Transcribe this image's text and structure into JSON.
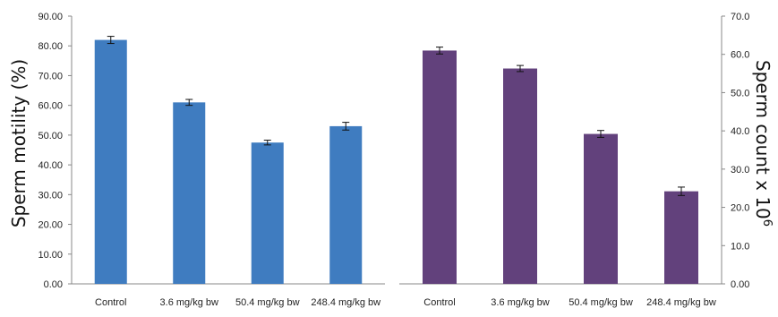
{
  "chart_data": [
    {
      "type": "bar",
      "categories": [
        "Control",
        "3.6 mg/kg bw",
        "50.4 mg/kg bw",
        "248.4 mg/kg bw"
      ],
      "values": [
        82.0,
        61.0,
        47.5,
        53.0
      ],
      "errors": [
        1.2,
        1.0,
        0.8,
        1.3
      ],
      "ylabel": "Sperm motility (%)",
      "ylim": [
        0,
        90
      ],
      "yticks": [
        "0.00",
        "10.00",
        "20.00",
        "30.00",
        "40.00",
        "50.00",
        "60.00",
        "70.00",
        "80.00",
        "90.00"
      ],
      "color": "#3f7cc0",
      "grid": false
    },
    {
      "type": "bar",
      "categories": [
        "Control",
        "3.6 mg/kg bw",
        "50.4 mg/kg bw",
        "248.4 mg/kg bw"
      ],
      "values": [
        61.0,
        56.3,
        39.2,
        24.2
      ],
      "errors": [
        0.9,
        0.8,
        0.9,
        1.1
      ],
      "ylabel": "Sperm count x 10",
      "ylabel_superscript": "6",
      "ylim": [
        0,
        70
      ],
      "yticks": [
        "0.00",
        "10.0",
        "20.0",
        "30.0",
        "40.0",
        "50.0",
        "60.0",
        "70.0"
      ],
      "color": "#62417c",
      "grid": false
    }
  ]
}
